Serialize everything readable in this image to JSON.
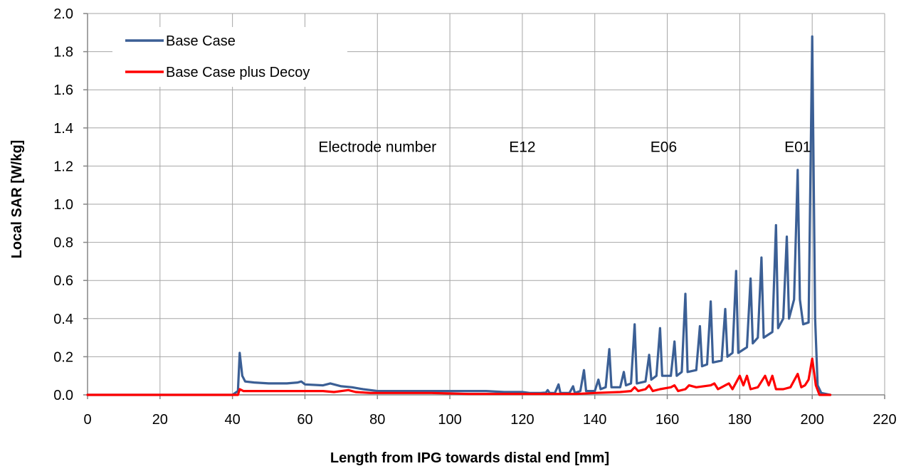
{
  "chart_data": {
    "type": "line",
    "xlabel": "Length from IPG towards distal end [mm]",
    "ylabel": "Local SAR [W/kg]",
    "xlim": [
      0,
      220
    ],
    "ylim": [
      0,
      2.0
    ],
    "x_ticks": [
      0,
      20,
      40,
      60,
      80,
      100,
      120,
      140,
      160,
      180,
      200,
      220
    ],
    "y_ticks": [
      "0.0",
      "0.2",
      "0.4",
      "0.6",
      "0.8",
      "1.0",
      "1.2",
      "1.4",
      "1.6",
      "1.8",
      "2.0"
    ],
    "grid": true,
    "legend_position": "top-left",
    "annotations": [
      {
        "text": "Electrode number",
        "x": 80,
        "y": 1.3
      },
      {
        "text": "E12",
        "x": 120,
        "y": 1.3
      },
      {
        "text": "E06",
        "x": 159,
        "y": 1.3
      },
      {
        "text": "E01",
        "x": 196,
        "y": 1.3
      }
    ],
    "series": [
      {
        "name": "Base Case",
        "color": "#3b5f95",
        "points": [
          [
            0,
            0
          ],
          [
            40,
            0
          ],
          [
            41.5,
            0.02
          ],
          [
            42,
            0.22
          ],
          [
            42.7,
            0.1
          ],
          [
            43.5,
            0.07
          ],
          [
            46,
            0.065
          ],
          [
            50,
            0.06
          ],
          [
            55,
            0.06
          ],
          [
            58,
            0.065
          ],
          [
            59,
            0.07
          ],
          [
            60,
            0.055
          ],
          [
            65,
            0.05
          ],
          [
            67,
            0.06
          ],
          [
            70,
            0.045
          ],
          [
            73,
            0.04
          ],
          [
            76,
            0.03
          ],
          [
            80,
            0.02
          ],
          [
            85,
            0.02
          ],
          [
            90,
            0.02
          ],
          [
            95,
            0.02
          ],
          [
            100,
            0.02
          ],
          [
            105,
            0.02
          ],
          [
            110,
            0.02
          ],
          [
            115,
            0.015
          ],
          [
            120,
            0.015
          ],
          [
            122,
            0.01
          ],
          [
            125,
            0.01
          ],
          [
            126.5,
            0.012
          ],
          [
            127,
            0.025
          ],
          [
            127.5,
            0.01
          ],
          [
            129,
            0.01
          ],
          [
            130,
            0.055
          ],
          [
            130.5,
            0.01
          ],
          [
            133,
            0.01
          ],
          [
            134,
            0.045
          ],
          [
            134.5,
            0.01
          ],
          [
            136,
            0.02
          ],
          [
            137,
            0.13
          ],
          [
            137.6,
            0.02
          ],
          [
            140,
            0.02
          ],
          [
            141,
            0.08
          ],
          [
            141.6,
            0.03
          ],
          [
            143,
            0.04
          ],
          [
            144,
            0.24
          ],
          [
            144.6,
            0.04
          ],
          [
            147,
            0.04
          ],
          [
            148,
            0.12
          ],
          [
            148.6,
            0.05
          ],
          [
            150,
            0.06
          ],
          [
            151,
            0.37
          ],
          [
            151.6,
            0.06
          ],
          [
            154,
            0.07
          ],
          [
            155,
            0.21
          ],
          [
            155.6,
            0.08
          ],
          [
            157,
            0.1
          ],
          [
            158,
            0.35
          ],
          [
            158.6,
            0.1
          ],
          [
            161,
            0.1
          ],
          [
            162,
            0.28
          ],
          [
            162.6,
            0.1
          ],
          [
            164,
            0.12
          ],
          [
            165,
            0.53
          ],
          [
            165.6,
            0.12
          ],
          [
            168,
            0.13
          ],
          [
            169,
            0.36
          ],
          [
            169.6,
            0.15
          ],
          [
            171,
            0.16
          ],
          [
            172,
            0.49
          ],
          [
            172.6,
            0.17
          ],
          [
            175,
            0.18
          ],
          [
            176,
            0.45
          ],
          [
            176.6,
            0.2
          ],
          [
            178,
            0.22
          ],
          [
            179,
            0.65
          ],
          [
            179.6,
            0.22
          ],
          [
            182,
            0.25
          ],
          [
            183,
            0.61
          ],
          [
            183.6,
            0.27
          ],
          [
            185,
            0.3
          ],
          [
            186,
            0.72
          ],
          [
            186.6,
            0.3
          ],
          [
            189,
            0.33
          ],
          [
            190,
            0.89
          ],
          [
            190.6,
            0.35
          ],
          [
            192,
            0.4
          ],
          [
            193,
            0.83
          ],
          [
            193.6,
            0.4
          ],
          [
            195,
            0.5
          ],
          [
            196,
            1.18
          ],
          [
            196.6,
            0.5
          ],
          [
            197.5,
            0.37
          ],
          [
            199,
            0.38
          ],
          [
            200,
            1.88
          ],
          [
            200.8,
            0.4
          ],
          [
            201.5,
            0.05
          ],
          [
            202.5,
            0.01
          ],
          [
            205,
            0.0
          ]
        ]
      },
      {
        "name": "Base Case plus Decoy",
        "color": "#ff0000",
        "points": [
          [
            0,
            0
          ],
          [
            41.5,
            0
          ],
          [
            42,
            0.03
          ],
          [
            43,
            0.02
          ],
          [
            46,
            0.02
          ],
          [
            50,
            0.02
          ],
          [
            55,
            0.02
          ],
          [
            60,
            0.02
          ],
          [
            65,
            0.02
          ],
          [
            68,
            0.015
          ],
          [
            72,
            0.025
          ],
          [
            74,
            0.015
          ],
          [
            78,
            0.01
          ],
          [
            85,
            0.01
          ],
          [
            95,
            0.01
          ],
          [
            105,
            0.005
          ],
          [
            115,
            0.005
          ],
          [
            125,
            0.005
          ],
          [
            135,
            0.005
          ],
          [
            140,
            0.01
          ],
          [
            147,
            0.015
          ],
          [
            150,
            0.02
          ],
          [
            151,
            0.04
          ],
          [
            152,
            0.02
          ],
          [
            154,
            0.03
          ],
          [
            155,
            0.05
          ],
          [
            156,
            0.02
          ],
          [
            158,
            0.03
          ],
          [
            161,
            0.04
          ],
          [
            162,
            0.05
          ],
          [
            163,
            0.02
          ],
          [
            165,
            0.03
          ],
          [
            166,
            0.05
          ],
          [
            168,
            0.04
          ],
          [
            172,
            0.05
          ],
          [
            173,
            0.06
          ],
          [
            174,
            0.03
          ],
          [
            176,
            0.05
          ],
          [
            177,
            0.06
          ],
          [
            178,
            0.03
          ],
          [
            180,
            0.1
          ],
          [
            181,
            0.05
          ],
          [
            182,
            0.1
          ],
          [
            183,
            0.03
          ],
          [
            185,
            0.04
          ],
          [
            187,
            0.1
          ],
          [
            188,
            0.05
          ],
          [
            189,
            0.1
          ],
          [
            190,
            0.03
          ],
          [
            192,
            0.03
          ],
          [
            194,
            0.04
          ],
          [
            196,
            0.11
          ],
          [
            197,
            0.04
          ],
          [
            198,
            0.05
          ],
          [
            199,
            0.08
          ],
          [
            200,
            0.19
          ],
          [
            201,
            0.05
          ],
          [
            202,
            0.0
          ],
          [
            205,
            0.0
          ]
        ]
      }
    ]
  }
}
